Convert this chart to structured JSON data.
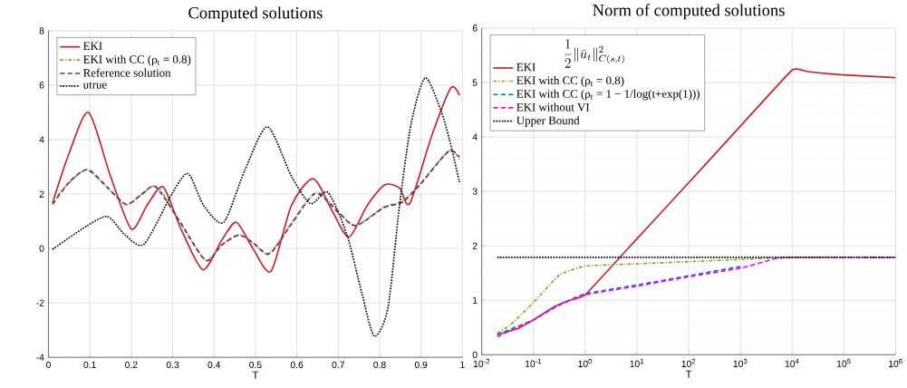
{
  "chart_data": [
    {
      "type": "line",
      "title": "Computed solutions",
      "xlabel": "T",
      "xlim": [
        0,
        1
      ],
      "ylim": [
        -4,
        8
      ],
      "xticks": [
        0,
        0.1,
        0.2,
        0.3,
        0.4,
        0.5,
        0.6,
        0.7,
        0.8,
        0.9,
        1
      ],
      "yticks": [
        -4,
        -2,
        0,
        2,
        4,
        6,
        8
      ],
      "grid": true,
      "legend": "top left",
      "series": [
        {
          "name": "EKI",
          "color": "#cc2229",
          "line_style": "solid",
          "x": [
            0.01,
            0.05,
            0.097,
            0.15,
            0.2,
            0.238,
            0.277,
            0.32,
            0.373,
            0.418,
            0.454,
            0.495,
            0.538,
            0.587,
            0.64,
            0.686,
            0.726,
            0.77,
            0.813,
            0.848,
            0.873,
            0.926,
            0.972,
            0.993
          ],
          "values": [
            1.68,
            3.5,
            5.0,
            2.65,
            0.72,
            1.58,
            2.26,
            0.72,
            -0.78,
            0.29,
            0.96,
            -0.03,
            -0.83,
            1.58,
            2.56,
            1.36,
            0.42,
            1.58,
            2.34,
            2.22,
            1.66,
            4.15,
            5.9,
            5.63
          ]
        },
        {
          "name": "EKI with CC (ρ$_{t}$ = 0.8)",
          "color": "#77ac30",
          "line_style": "dashdot",
          "x": [
            0.01,
            0.051,
            0.093,
            0.143,
            0.188,
            0.227,
            0.263,
            0.319,
            0.379,
            0.418,
            0.46,
            0.495,
            0.534,
            0.587,
            0.647,
            0.7,
            0.742,
            0.81,
            0.855,
            0.898,
            0.968,
            0.993
          ],
          "values": [
            1.73,
            2.43,
            2.88,
            2.22,
            1.61,
            2.0,
            2.27,
            0.93,
            -0.41,
            0.13,
            0.5,
            0.18,
            -0.16,
            0.93,
            2.06,
            1.36,
            0.85,
            1.52,
            1.74,
            2.38,
            3.59,
            3.25
          ]
        },
        {
          "name": "Reference solution",
          "color": "#7e1e80",
          "line_style": "dashed",
          "x": [
            0.01,
            0.051,
            0.095,
            0.143,
            0.188,
            0.227,
            0.26,
            0.319,
            0.38,
            0.418,
            0.46,
            0.495,
            0.534,
            0.587,
            0.645,
            0.7,
            0.742,
            0.81,
            0.855,
            0.898,
            0.966,
            0.993
          ],
          "values": [
            1.62,
            2.45,
            2.9,
            2.24,
            1.62,
            2.02,
            2.25,
            0.95,
            -0.44,
            0.12,
            0.49,
            0.2,
            -0.2,
            0.9,
            2.02,
            1.33,
            0.84,
            1.5,
            1.7,
            2.35,
            3.56,
            3.36
          ]
        },
        {
          "name": "utrue",
          "color": "#000000",
          "line_style": "dotted",
          "x": [
            0.01,
            0.093,
            0.143,
            0.185,
            0.231,
            0.298,
            0.337,
            0.375,
            0.423,
            0.474,
            0.529,
            0.587,
            0.633,
            0.675,
            0.721,
            0.757,
            0.787,
            0.82,
            0.848,
            0.876,
            0.91,
            0.947,
            0.968,
            0.993
          ],
          "values": [
            -0.03,
            0.83,
            1.17,
            0.5,
            0.16,
            2.0,
            2.75,
            1.58,
            0.96,
            2.86,
            4.47,
            2.65,
            1.65,
            2.06,
            0.5,
            -1.64,
            -3.22,
            -2.18,
            1.58,
            4.58,
            6.27,
            5.11,
            4.04,
            2.43
          ]
        }
      ]
    },
    {
      "type": "line",
      "title": "Norm of computed solutions",
      "xlabel": "T",
      "log": "x",
      "xlim": [
        0.01,
        1000000
      ],
      "ylim": [
        0,
        6
      ],
      "xticks": [
        {
          "value": 0.01,
          "label": "10$^{-2}$"
        },
        {
          "value": 0.1,
          "label": "10$^{-1}$"
        },
        {
          "value": 1,
          "label": "10$^{0}$"
        },
        {
          "value": 10,
          "label": "10$^{1}$"
        },
        {
          "value": 100,
          "label": "10$^{2}$"
        },
        {
          "value": 1000,
          "label": "10$^{3}$"
        },
        {
          "value": 10000,
          "label": "10$^{4}$"
        },
        {
          "value": 100000,
          "label": "10$^{5}$"
        },
        {
          "value": 1000000,
          "label": "10$^{6}$"
        }
      ],
      "yticks": [
        0,
        1,
        2,
        3,
        4,
        5,
        6
      ],
      "grid": true,
      "legend": "top left",
      "legend_title": "\\frac{1}{2}\\|\\bar{u}_t\\|^2_{C(s,t)}",
      "series": [
        {
          "name": "EKI",
          "color": "#cc2229",
          "line_style": "solid",
          "x": [
            0.02,
            0.05,
            0.1,
            0.25,
            0.5,
            1,
            10,
            100,
            1000,
            10000,
            20000,
            50000,
            100000,
            1000000
          ],
          "values": [
            0.37,
            0.48,
            0.64,
            0.88,
            1.0,
            1.1,
            2.13,
            3.16,
            4.2,
            5.23,
            5.2,
            5.16,
            5.14,
            5.09
          ]
        },
        {
          "name": "EKI with CC (ρ$_{t}$ = 0.8)",
          "color": "#77ac30",
          "line_style": "dashdot",
          "x": [
            0.02,
            0.035,
            0.1,
            0.32,
            1,
            10,
            100,
            1000,
            10000,
            1000000
          ],
          "values": [
            0.4,
            0.54,
            0.96,
            1.47,
            1.63,
            1.67,
            1.71,
            1.75,
            1.79,
            1.79
          ]
        },
        {
          "name": "EKI with CC (ρ$_{t}$ = 1 − 1/log(t+exp(1)))",
          "color": "#0072bd",
          "line_style": "dashed",
          "x": [
            0.02,
            0.1,
            0.3,
            1,
            10,
            100,
            1000
          ],
          "values": [
            0.37,
            0.64,
            0.91,
            1.12,
            1.28,
            1.45,
            1.62
          ]
        },
        {
          "name": "EKI without VI",
          "color": "#ff00ff",
          "line_style": "dashed",
          "x": [
            0.02,
            0.1,
            0.3,
            1,
            10,
            100,
            1000,
            5000,
            10000,
            1000000
          ],
          "values": [
            0.33,
            0.64,
            0.9,
            1.1,
            1.26,
            1.43,
            1.59,
            1.77,
            1.79,
            1.79
          ]
        },
        {
          "name": "Upper Bound",
          "color": "#000000",
          "line_style": "dotted",
          "x": [
            0.02,
            1000000
          ],
          "values": [
            1.79,
            1.79
          ]
        }
      ]
    }
  ]
}
